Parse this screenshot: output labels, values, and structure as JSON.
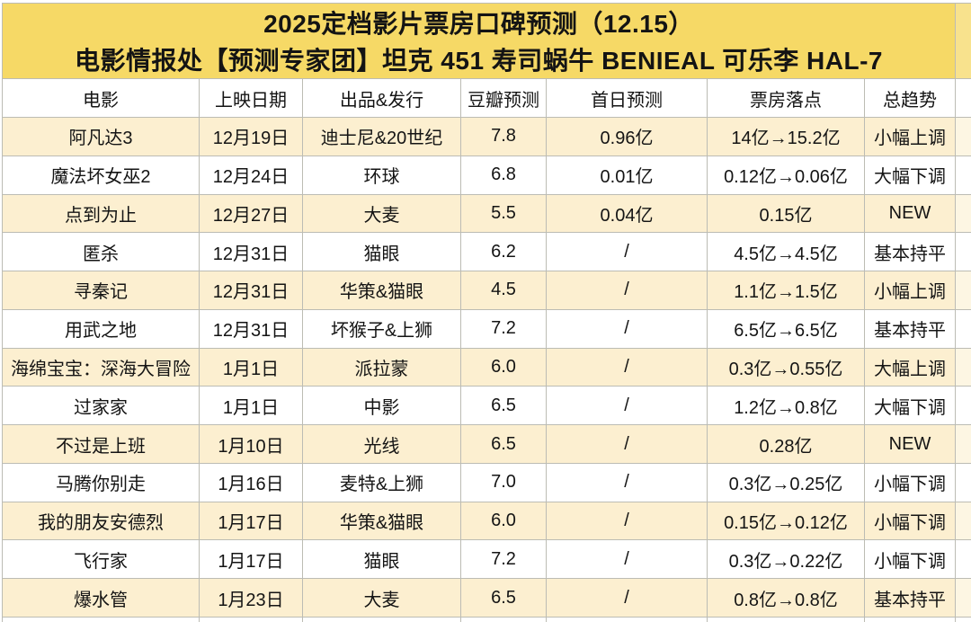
{
  "chart_data": {
    "type": "table",
    "title": "2025定档影片票房口碑预测（12.15）",
    "subtitle": "电影情报处【预测专家团】坦克 451 寿司蜗牛 BENIEAL 可乐李 HAL-7",
    "columns": [
      "电影",
      "上映日期",
      "出品&发行",
      "豆瓣预测",
      "首日预测",
      "票房落点",
      "总趋势"
    ],
    "rows": [
      [
        "阿凡达3",
        "12月19日",
        "迪士尼&20世纪",
        "7.8",
        "0.96亿",
        "14亿→15.2亿",
        "小幅上调"
      ],
      [
        "魔法坏女巫2",
        "12月24日",
        "环球",
        "6.8",
        "0.01亿",
        "0.12亿→0.06亿",
        "大幅下调"
      ],
      [
        "点到为止",
        "12月27日",
        "大麦",
        "5.5",
        "0.04亿",
        "0.15亿",
        "NEW"
      ],
      [
        "匿杀",
        "12月31日",
        "猫眼",
        "6.2",
        "/",
        "4.5亿→4.5亿",
        "基本持平"
      ],
      [
        "寻秦记",
        "12月31日",
        "华策&猫眼",
        "4.5",
        "/",
        "1.1亿→1.5亿",
        "小幅上调"
      ],
      [
        "用武之地",
        "12月31日",
        "坏猴子&上狮",
        "7.2",
        "/",
        "6.5亿→6.5亿",
        "基本持平"
      ],
      [
        "海绵宝宝：深海大冒险",
        "1月1日",
        "派拉蒙",
        "6.0",
        "/",
        "0.3亿→0.55亿",
        "大幅上调"
      ],
      [
        "过家家",
        "1月1日",
        "中影",
        "6.5",
        "/",
        "1.2亿→0.8亿",
        "大幅下调"
      ],
      [
        "不过是上班",
        "1月10日",
        "光线",
        "6.5",
        "/",
        "0.28亿",
        "NEW"
      ],
      [
        "马腾你别走",
        "1月16日",
        "麦特&上狮",
        "7.0",
        "/",
        "0.3亿→0.25亿",
        "小幅下调"
      ],
      [
        "我的朋友安德烈",
        "1月17日",
        "华策&猫眼",
        "6.0",
        "/",
        "0.15亿→0.12亿",
        "小幅下调"
      ],
      [
        "飞行家",
        "1月17日",
        "猫眼",
        "7.2",
        "/",
        "0.3亿→0.22亿",
        "小幅下调"
      ],
      [
        "爆水管",
        "1月23日",
        "大麦",
        "6.5",
        "/",
        "0.8亿→0.8亿",
        "基本持平"
      ]
    ]
  },
  "colors": {
    "title_bg": "#f6d966",
    "title_bg_cutoff": "#f8e28d",
    "row_alt_bg": "#fcefd0",
    "row_alt_bg_cutoff": "#fdf6e3",
    "row_bg": "#ffffff",
    "grid_border": "#bcbcb4",
    "text": "#141414"
  }
}
